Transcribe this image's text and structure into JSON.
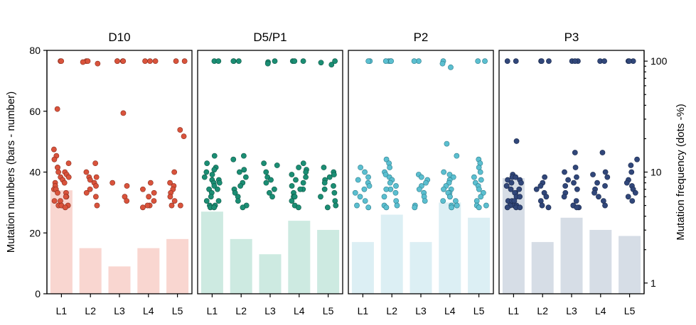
{
  "chart_data": {
    "type": "bar",
    "categories": [
      "L1",
      "L2",
      "L3",
      "L4",
      "L5"
    ],
    "ylabel": "Mutation numbers (bars - number)",
    "ylabel_right": "Mutation frequency (dots -%)",
    "ylim": [
      0,
      80
    ],
    "yticks": [
      0,
      20,
      40,
      60,
      80
    ],
    "ylim_right": [
      0.8,
      125
    ],
    "yticks_right": [
      1,
      10,
      100
    ],
    "y2_scale": "log",
    "grid": false,
    "panels": [
      {
        "title": "D10",
        "bar_color": "#f9d6d0",
        "dot_color": "#d9533c",
        "dot_edge": "#8a2e1e",
        "values": [
          34,
          15,
          9,
          15,
          18
        ],
        "dots": [
          [
            100,
            100,
            37,
            16,
            14,
            13,
            12,
            11,
            11,
            10,
            10,
            9.5,
            9,
            9,
            8.5,
            8,
            8,
            7.5,
            7,
            7,
            6.5,
            6.5,
            6,
            6,
            5.5,
            5.5,
            5,
            5,
            5,
            4.8
          ],
          [
            100,
            100,
            98,
            95,
            12,
            10,
            9,
            9,
            8.5,
            8,
            7.5,
            7,
            6.5,
            6,
            5
          ],
          [
            100,
            100,
            100,
            100,
            34,
            8,
            7.5,
            6,
            5.5
          ],
          [
            100,
            100,
            100,
            8,
            7,
            6.5,
            6,
            5.5,
            5,
            5,
            4.8
          ],
          [
            100,
            100,
            24,
            21,
            10,
            8,
            7.5,
            7,
            6.5,
            6,
            5.5,
            5,
            5
          ]
        ]
      },
      {
        "title": "D5/P1",
        "bar_color": "#cdeae1",
        "dot_color": "#1b8e74",
        "dot_edge": "#0e5746",
        "values": [
          27,
          18,
          13,
          24,
          21
        ],
        "dots": [
          [
            100,
            100,
            14,
            12,
            11,
            10.5,
            10,
            9.5,
            9,
            8.5,
            8.5,
            8,
            8,
            7.5,
            7,
            7,
            6.5,
            6,
            5.5,
            5.5,
            5,
            5,
            4.8,
            4.8
          ],
          [
            100,
            100,
            100,
            14,
            13,
            10.5,
            10,
            9,
            8,
            7.5,
            7,
            6.5,
            6,
            5.5,
            5,
            4.8
          ],
          [
            100,
            98,
            95,
            12,
            11.5,
            10,
            9,
            8.5,
            8,
            7,
            6.5,
            6
          ],
          [
            100,
            100,
            100,
            12,
            11,
            10.5,
            10,
            9.5,
            9,
            8.5,
            8,
            7.5,
            7,
            7,
            6.5,
            6,
            6,
            5.5,
            5,
            4.8
          ],
          [
            100,
            97,
            93,
            11,
            10,
            9.5,
            9,
            8.5,
            8,
            7.5,
            7,
            6.5,
            6,
            5.5,
            5,
            4.8
          ]
        ]
      },
      {
        "title": "P2",
        "bar_color": "#dceff4",
        "dot_color": "#5bbfd0",
        "dot_edge": "#2e7c8a",
        "values": [
          17,
          26,
          17,
          30,
          25
        ],
        "dots": [
          [
            100,
            100,
            11,
            10,
            9,
            8.5,
            8,
            7.5,
            7,
            6.5,
            6,
            5.5,
            5,
            4.8
          ],
          [
            100,
            100,
            100,
            100,
            13,
            12,
            11,
            10,
            9.5,
            9,
            8.5,
            8,
            7.5,
            7,
            7,
            6.5,
            6,
            5.5,
            5,
            5,
            4.8
          ],
          [
            100,
            100,
            9.5,
            9,
            8.5,
            8,
            7.5,
            7,
            6.5,
            6,
            5.5,
            5,
            4.8
          ],
          [
            100,
            95,
            88,
            18,
            14,
            10,
            9.5,
            9,
            8.5,
            8,
            7.5,
            7,
            7,
            6.5,
            6.5,
            6,
            6,
            5.5,
            5.5,
            5,
            5,
            4.8
          ],
          [
            100,
            100,
            13,
            12,
            11,
            10,
            9,
            8.5,
            8,
            7.5,
            7,
            6.5,
            6,
            5.5,
            5,
            5,
            4.8
          ]
        ]
      },
      {
        "title": "P3",
        "bar_color": "#d6dde6",
        "dot_color": "#31477a",
        "dot_edge": "#1b2a4d",
        "values": [
          38,
          17,
          25,
          21,
          19
        ],
        "dots": [
          [
            100,
            100,
            19,
            9.5,
            9,
            9,
            8.5,
            8.5,
            8,
            8,
            7.5,
            7.5,
            7,
            7,
            6.5,
            6.5,
            6,
            6,
            5.5,
            5.5,
            5.5,
            5,
            5,
            5,
            4.8,
            4.8,
            4.8
          ],
          [
            100,
            100,
            100,
            9,
            8,
            7.5,
            7,
            6.5,
            6,
            5.5,
            5,
            4.8
          ],
          [
            100,
            100,
            100,
            15,
            11,
            10,
            9,
            8.5,
            8,
            7.5,
            7,
            6.5,
            6,
            5.5,
            5,
            5,
            4.8,
            4.8
          ],
          [
            100,
            100,
            15,
            10,
            9.5,
            9,
            8,
            7.5,
            7,
            6.5,
            6,
            5.5,
            5
          ],
          [
            100,
            100,
            100,
            13,
            11.5,
            10,
            8.5,
            8,
            7.5,
            7,
            6.5,
            6,
            5.5
          ]
        ]
      }
    ]
  }
}
